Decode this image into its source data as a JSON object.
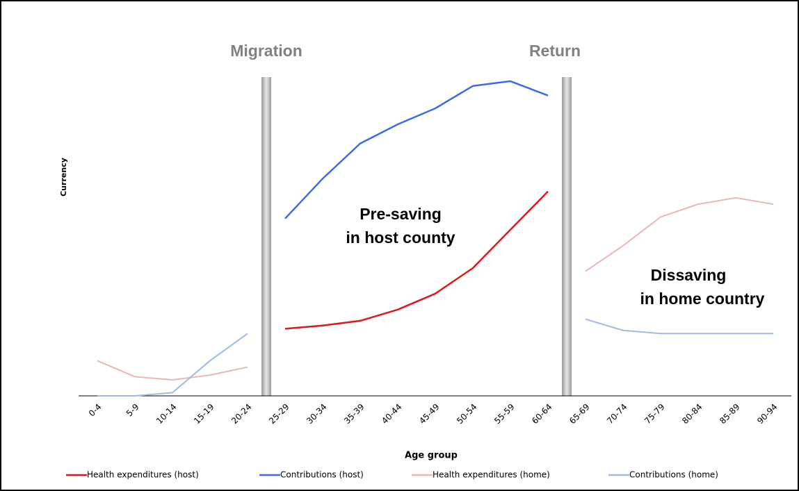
{
  "chart_data": {
    "type": "line",
    "x_label": "Age group",
    "y_label": "Currency",
    "categories": [
      "0-4",
      "5-9",
      "10-14",
      "15-19",
      "20-24",
      "25-29",
      "30-34",
      "35-39",
      "40-44",
      "45-49",
      "50-54",
      "55-59",
      "60-64",
      "65-69",
      "70-74",
      "75-79",
      "80-84",
      "85-89",
      "90-94"
    ],
    "ylim": [
      0,
      105
    ],
    "annotations": [
      "Migration",
      "Return",
      "Pre-saving",
      "in host county",
      "Dissaving",
      "in home country"
    ],
    "series": [
      {
        "name": "Health expenditures (host)",
        "color": "#e3141a",
        "values": [
          null,
          null,
          null,
          null,
          null,
          21,
          22,
          23.5,
          27,
          32,
          40,
          52,
          64,
          null,
          null,
          null,
          null,
          null,
          null
        ]
      },
      {
        "name": "Contributions (host)",
        "color": "#3d6ae8",
        "values": [
          null,
          null,
          null,
          null,
          null,
          55.5,
          68,
          79,
          85,
          90,
          97,
          98.5,
          94,
          null,
          null,
          null,
          null,
          null,
          null
        ]
      },
      {
        "name": "Health expenditures (home)",
        "color": "#e9b8b5",
        "values": [
          11,
          6,
          5,
          6.5,
          9,
          null,
          null,
          null,
          null,
          null,
          null,
          null,
          null,
          39,
          47,
          56,
          60,
          62,
          60
        ]
      },
      {
        "name": "Contributions (home)",
        "color": "#9dbbe3",
        "values": [
          0,
          0,
          1,
          11,
          19.5,
          null,
          null,
          null,
          null,
          null,
          null,
          null,
          null,
          24,
          20.5,
          19.5,
          19.5,
          19.5,
          19.5
        ]
      }
    ]
  }
}
